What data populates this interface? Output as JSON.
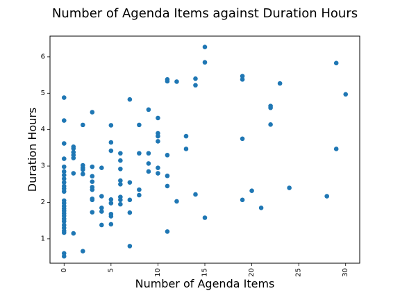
{
  "chart_data": {
    "type": "scatter",
    "title": "Number of Agenda Items against Duration Hours",
    "xlabel": "Number of Agenda Items",
    "ylabel": "Duration Hours",
    "xlim": [
      -1.5,
      31.5
    ],
    "ylim": [
      0.33,
      6.57
    ],
    "x_ticks": [
      0,
      5,
      10,
      15,
      20,
      25,
      30
    ],
    "y_ticks": [
      1,
      2,
      3,
      4,
      5,
      6
    ],
    "grid": false,
    "color": "#1f77b4",
    "points": [
      [
        0,
        4.88
      ],
      [
        0,
        4.25
      ],
      [
        0,
        3.62
      ],
      [
        0,
        3.2
      ],
      [
        0,
        2.98
      ],
      [
        0,
        2.85
      ],
      [
        0,
        2.75
      ],
      [
        0,
        2.65
      ],
      [
        0,
        2.55
      ],
      [
        0,
        2.45
      ],
      [
        0,
        2.38
      ],
      [
        0,
        2.3
      ],
      [
        0,
        2.05
      ],
      [
        0,
        1.98
      ],
      [
        0,
        1.9
      ],
      [
        0,
        1.83
      ],
      [
        0,
        1.77
      ],
      [
        0,
        1.7
      ],
      [
        0,
        1.63
      ],
      [
        0,
        1.55
      ],
      [
        0,
        1.48
      ],
      [
        0,
        1.38
      ],
      [
        0,
        1.3
      ],
      [
        0,
        1.22
      ],
      [
        0,
        1.17
      ],
      [
        0,
        0.6
      ],
      [
        0,
        0.52
      ],
      [
        1,
        3.53
      ],
      [
        1,
        3.48
      ],
      [
        1,
        3.38
      ],
      [
        1,
        3.3
      ],
      [
        1,
        3.22
      ],
      [
        1,
        2.8
      ],
      [
        1,
        1.15
      ],
      [
        2,
        4.13
      ],
      [
        2,
        3.02
      ],
      [
        2,
        2.95
      ],
      [
        2,
        2.9
      ],
      [
        2,
        2.78
      ],
      [
        2,
        0.66
      ],
      [
        3,
        4.48
      ],
      [
        3,
        2.98
      ],
      [
        3,
        2.72
      ],
      [
        3,
        2.57
      ],
      [
        3,
        2.42
      ],
      [
        3,
        2.35
      ],
      [
        3,
        2.1
      ],
      [
        3,
        2.07
      ],
      [
        3,
        1.73
      ],
      [
        4,
        2.95
      ],
      [
        4,
        2.17
      ],
      [
        4,
        1.85
      ],
      [
        4,
        1.75
      ],
      [
        4,
        1.38
      ],
      [
        5,
        4.12
      ],
      [
        5,
        3.65
      ],
      [
        5,
        3.42
      ],
      [
        5,
        2.08
      ],
      [
        5,
        1.98
      ],
      [
        5,
        1.68
      ],
      [
        5,
        1.62
      ],
      [
        5,
        1.4
      ],
      [
        6,
        3.35
      ],
      [
        6,
        3.15
      ],
      [
        6,
        2.92
      ],
      [
        6,
        2.6
      ],
      [
        6,
        2.5
      ],
      [
        6,
        2.15
      ],
      [
        6,
        2.07
      ],
      [
        6,
        1.95
      ],
      [
        7,
        4.83
      ],
      [
        7,
        2.55
      ],
      [
        7,
        2.07
      ],
      [
        7,
        1.72
      ],
      [
        7,
        0.8
      ],
      [
        8,
        4.13
      ],
      [
        8,
        3.35
      ],
      [
        8,
        2.35
      ],
      [
        8,
        2.2
      ],
      [
        9,
        4.55
      ],
      [
        9,
        3.35
      ],
      [
        9,
        3.07
      ],
      [
        9,
        2.85
      ],
      [
        10,
        4.32
      ],
      [
        10,
        3.9
      ],
      [
        10,
        3.82
      ],
      [
        10,
        3.68
      ],
      [
        10,
        2.95
      ],
      [
        10,
        2.8
      ],
      [
        11,
        5.38
      ],
      [
        11,
        5.33
      ],
      [
        11,
        3.3
      ],
      [
        11,
        2.73
      ],
      [
        11,
        2.45
      ],
      [
        11,
        1.2
      ],
      [
        12,
        5.32
      ],
      [
        12,
        2.03
      ],
      [
        13,
        3.82
      ],
      [
        13,
        3.47
      ],
      [
        14,
        5.4
      ],
      [
        14,
        5.22
      ],
      [
        14,
        2.22
      ],
      [
        15,
        6.27
      ],
      [
        15,
        5.85
      ],
      [
        15,
        1.58
      ],
      [
        19,
        5.47
      ],
      [
        19,
        5.38
      ],
      [
        19,
        3.75
      ],
      [
        19,
        2.07
      ],
      [
        20,
        2.32
      ],
      [
        21,
        1.85
      ],
      [
        22,
        4.65
      ],
      [
        22,
        4.6
      ],
      [
        22,
        4.14
      ],
      [
        23,
        5.27
      ],
      [
        24,
        2.4
      ],
      [
        28,
        2.17
      ],
      [
        29,
        5.83
      ],
      [
        29,
        3.47
      ],
      [
        30,
        4.97
      ]
    ]
  }
}
